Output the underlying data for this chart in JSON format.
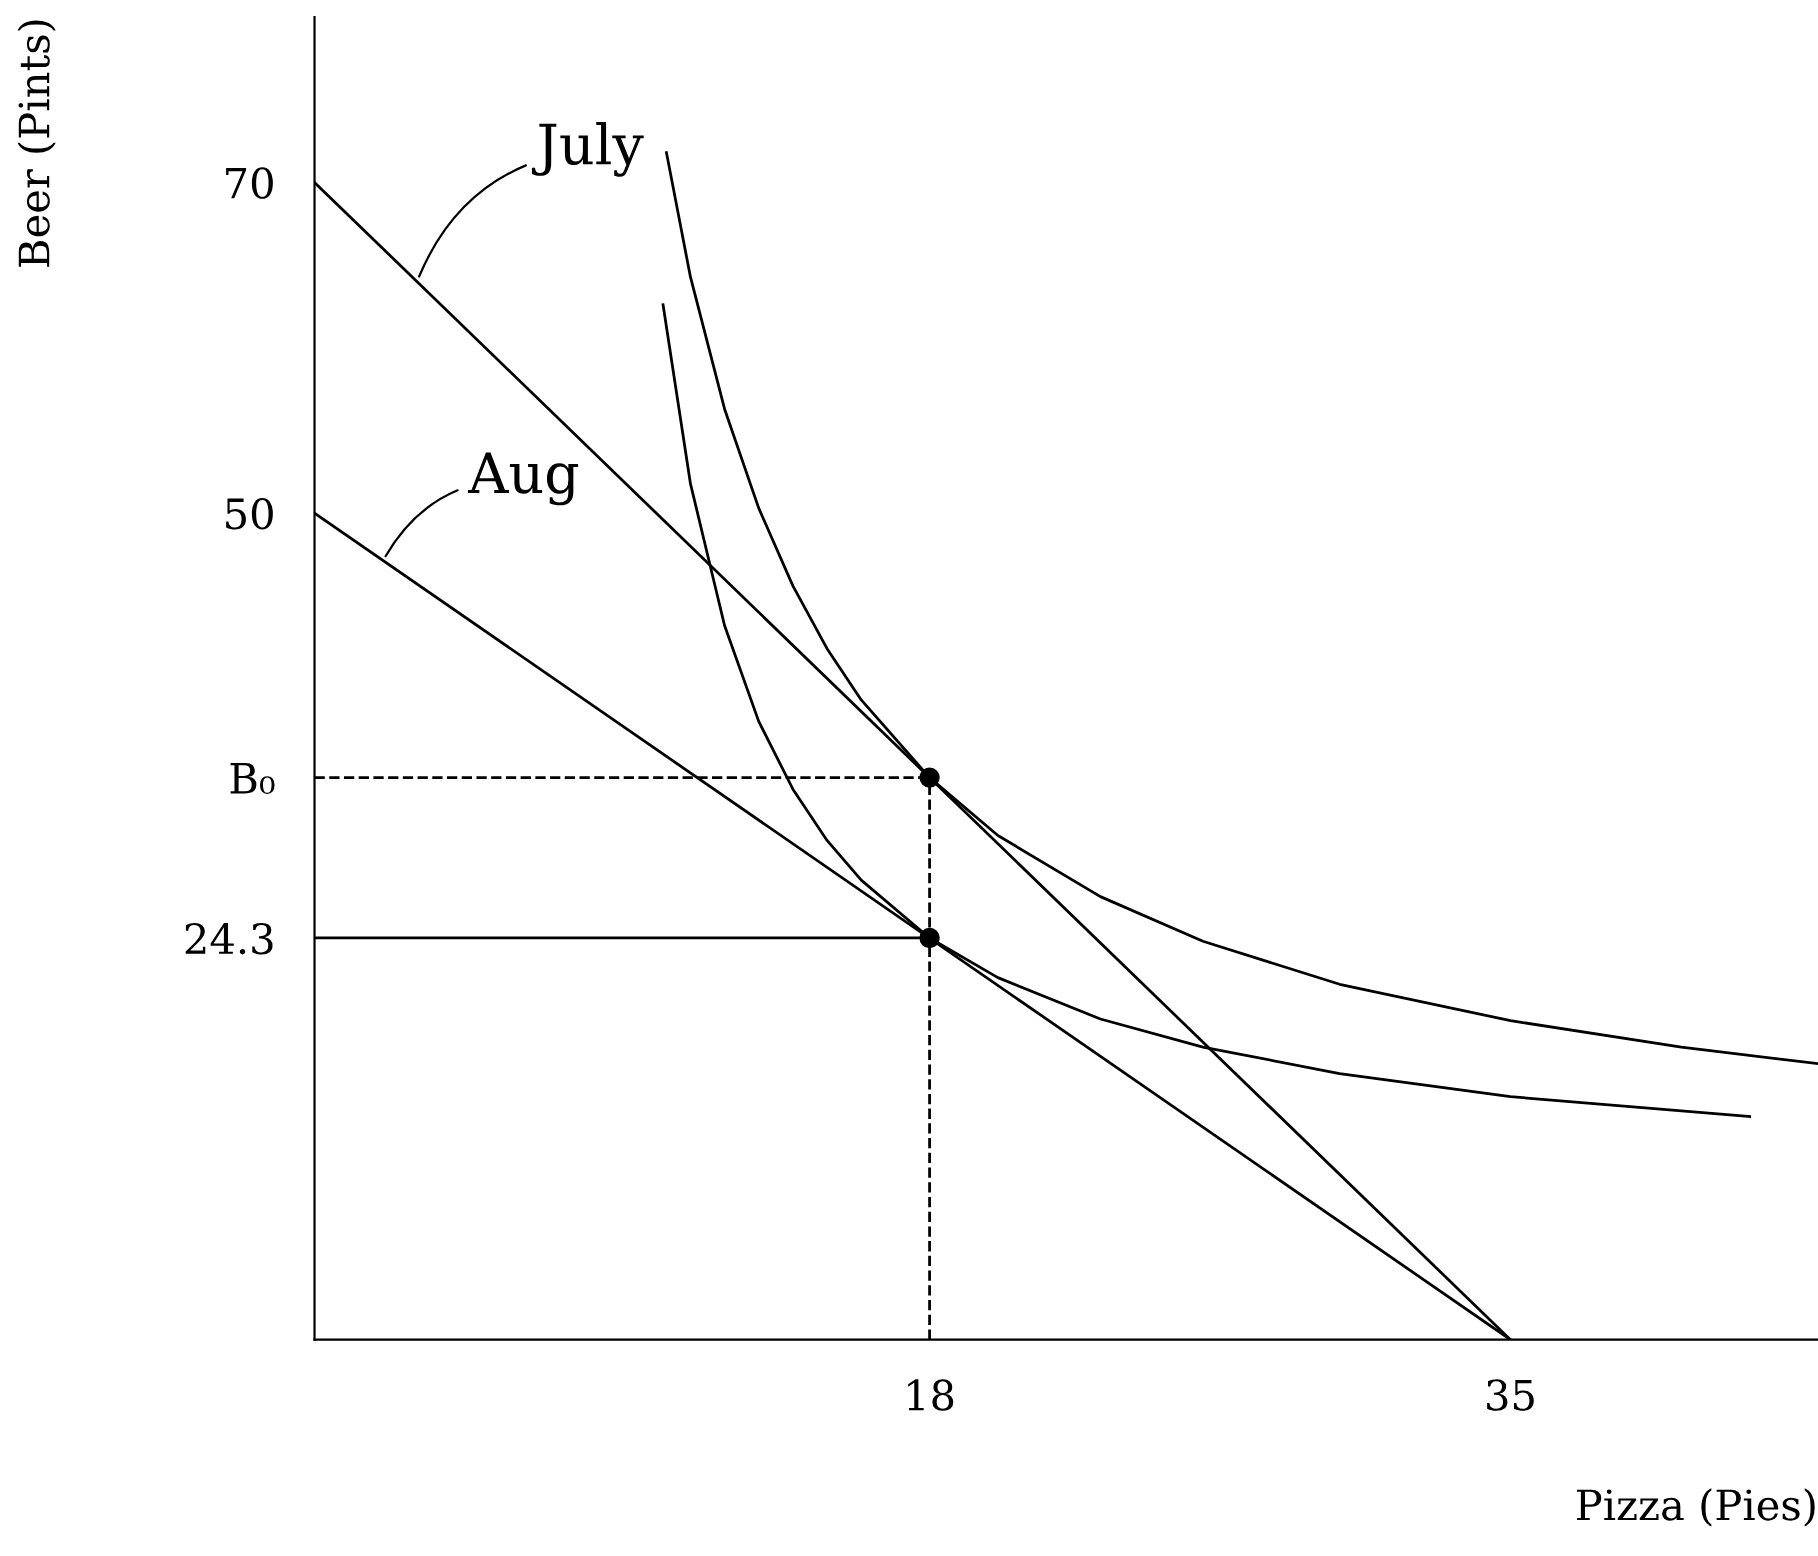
{
  "chart_data": {
    "type": "line",
    "xlabel": "Pizza (Pies)",
    "ylabel": "Beer (Pints)",
    "xlim": [
      0,
      44
    ],
    "ylim": [
      0,
      80
    ],
    "xticks": [
      18,
      35
    ],
    "yticks": [
      70,
      50,
      {
        "value": 34,
        "label": "B₀"
      },
      24.3
    ],
    "grid": false,
    "legend": false,
    "marker": "none",
    "line_style": "solid",
    "series": [
      {
        "color": "#000000",
        "x": [
          0,
          35
        ],
        "values": [
          70,
          0
        ]
      },
      {
        "color": "#000000",
        "x": [
          0,
          35
        ],
        "values": [
          50,
          0
        ]
      },
      {
        "color": "#000000",
        "x": [
          10.3,
          11,
          12,
          13,
          14,
          15,
          16,
          18,
          20,
          23,
          26,
          30,
          35,
          40,
          44
        ],
        "values": [
          71.8,
          64.3,
          56.3,
          50.3,
          45.6,
          41.8,
          38.7,
          34,
          30.5,
          26.8,
          24.1,
          21.5,
          19.3,
          17.7,
          16.7
        ]
      },
      {
        "color": "#000000",
        "x": [
          10.2,
          11,
          12,
          13,
          14,
          15,
          16,
          18,
          20,
          23,
          26,
          30,
          35,
          42
        ],
        "values": [
          62.6,
          51.8,
          43.2,
          37.4,
          33.3,
          30.2,
          27.8,
          24.3,
          21.9,
          19.4,
          17.7,
          16.1,
          14.7,
          13.5
        ]
      },
      {
        "color": "#000000",
        "x": [
          0,
          18
        ],
        "values": [
          34,
          34
        ],
        "line_style": "dashed"
      },
      {
        "color": "#000000",
        "x": [
          18,
          18
        ],
        "values": [
          0,
          34
        ],
        "line_style": "dashed"
      },
      {
        "color": "#000000",
        "x": [
          0,
          18
        ],
        "values": [
          24.3,
          24.3
        ]
      },
      {
        "color": "#000000",
        "type": "scatter",
        "marker": "circle",
        "x": [
          18,
          18
        ],
        "values": [
          34,
          24.3
        ]
      }
    ],
    "annotations": [
      {
        "text": "July",
        "x": 3,
        "y": 64
      },
      {
        "text": "Aug",
        "x": 2,
        "y": 47.1
      }
    ]
  }
}
